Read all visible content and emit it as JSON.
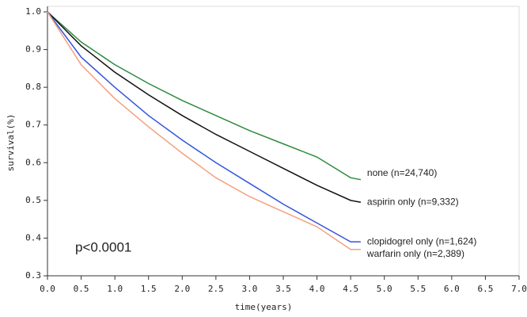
{
  "chart_data": {
    "type": "line",
    "xlabel": "time(years)",
    "ylabel": "survival(%)",
    "annotation": "p<0.0001",
    "x": [
      0,
      0.5,
      1,
      1.5,
      2,
      2.5,
      3,
      3.5,
      4,
      4.5,
      4.65
    ],
    "series": [
      {
        "name": "none (n=24,740)",
        "color": "#2e8b3e",
        "values": [
          1.0,
          0.92,
          0.86,
          0.81,
          0.765,
          0.725,
          0.685,
          0.65,
          0.615,
          0.56,
          0.555
        ]
      },
      {
        "name": "aspirin only (n=9,332)",
        "color": "#111111",
        "values": [
          1.0,
          0.91,
          0.84,
          0.78,
          0.725,
          0.675,
          0.63,
          0.585,
          0.54,
          0.5,
          0.495
        ]
      },
      {
        "name": "clopidogrel only (n=1,624)",
        "color": "#3355dd",
        "values": [
          1.0,
          0.88,
          0.8,
          0.725,
          0.66,
          0.6,
          0.545,
          0.49,
          0.44,
          0.39,
          0.39
        ]
      },
      {
        "name": "warfarin only (n=2,389)",
        "color": "#f4a07f",
        "values": [
          1.0,
          0.86,
          0.77,
          0.695,
          0.625,
          0.56,
          0.51,
          0.47,
          0.43,
          0.37,
          0.37
        ]
      }
    ],
    "xlim": [
      0,
      7
    ],
    "xticks": [
      {
        "value": 0,
        "label": "0.0"
      },
      0.5,
      {
        "value": 1,
        "label": "1.0"
      },
      1.5,
      {
        "value": 2,
        "label": "2.0"
      },
      2.5,
      {
        "value": 3,
        "label": "3.0"
      },
      3.5,
      {
        "value": 4,
        "label": "4.0"
      },
      4.5,
      {
        "value": 5,
        "label": "5.0"
      },
      5.5,
      {
        "value": 6,
        "label": "6.0"
      },
      6.5,
      {
        "value": 7,
        "label": "7.0"
      }
    ],
    "ylim": [
      0.3,
      1
    ],
    "yticks": [
      0.3,
      0.4,
      0.5,
      0.6,
      0.7,
      0.8,
      0.9,
      {
        "value": 1,
        "label": "1.0"
      }
    ],
    "grid": false
  }
}
